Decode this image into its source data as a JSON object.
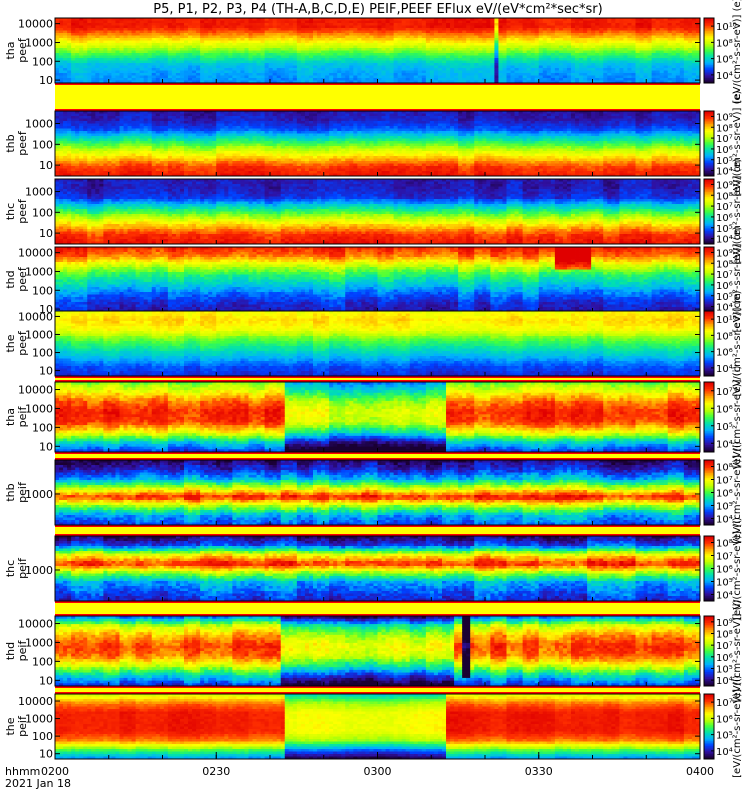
{
  "chart_data": {
    "type": "heatmap",
    "title": "P5, P1, P2, P3, P4 (TH-A,B,C,D,E) PEIF,PEEF EFlux eV/(eV*cm²*sec*sr)",
    "x_axis": {
      "label_line1": "hhmm",
      "label_line2": "2021 Jan 18",
      "range": [
        "0200",
        "0400"
      ],
      "ticks": [
        "0200",
        "0230",
        "0300",
        "0330",
        "0400"
      ]
    },
    "panels": [
      {
        "label_top": "tha",
        "label_bottom": "peef",
        "y_ticks": [
          "10",
          "100",
          "1000",
          "10000"
        ],
        "ylim": [
          7,
          20000
        ],
        "yscale": "log",
        "colorbar_ticks": [
          "10⁴",
          "10⁶",
          "10⁸",
          "10¹⁰"
        ],
        "colorbar_unit": "[eV/(cm²-s-sr-eV)] (e)",
        "profile": [
          9,
          9,
          7.5,
          6,
          4.5,
          3.2,
          2.8,
          2.6
        ],
        "noise": 0.6,
        "events": [
          {
            "t": 0.68,
            "width": 0.01,
            "delta": -2.2,
            "row_max": 1.0
          }
        ]
      },
      {
        "label_top": "thb",
        "label_bottom": "peef",
        "y_ticks": [
          "10",
          "100",
          "1000"
        ],
        "ylim": [
          3,
          4000
        ],
        "yscale": "log",
        "colorbar_ticks": [
          "10⁴",
          "10⁵",
          "10⁶",
          "10⁷",
          "10⁸",
          "10⁹"
        ],
        "colorbar_unit": "[eV/(cm²-s-sr-eV)] (e)",
        "profile": [
          1,
          1.2,
          2,
          3.8,
          5.5,
          7,
          8.5,
          9
        ],
        "noise": 0.7,
        "events": []
      },
      {
        "label_top": "thc",
        "label_bottom": "peef",
        "y_ticks": [
          "10",
          "100",
          "1000"
        ],
        "ylim": [
          3,
          4000
        ],
        "yscale": "log",
        "colorbar_ticks": [
          "10⁴",
          "10⁵",
          "10⁶",
          "10⁷",
          "10⁸",
          "10⁹"
        ],
        "colorbar_unit": "[eV/(cm²-s-sr-eV)] (e)",
        "profile": [
          1,
          1.1,
          1.5,
          3.5,
          5.3,
          7,
          8.5,
          9
        ],
        "noise": 0.8,
        "events": []
      },
      {
        "label_top": "thd",
        "label_bottom": "peef",
        "y_ticks": [
          "10",
          "100",
          "1000",
          "10000"
        ],
        "ylim": [
          7,
          20000
        ],
        "yscale": "log",
        "colorbar_ticks": [
          "10⁴",
          "10⁵",
          "10⁶",
          "10⁷",
          "10⁸",
          "10⁹"
        ],
        "colorbar_unit": "[eV/(cm²-s-sr-eV)] (e)",
        "profile": [
          9,
          8,
          6,
          4.5,
          3.5,
          2.4,
          1.6,
          1.2
        ],
        "noise": 0.9,
        "events": [
          {
            "t": 0.8,
            "width": 0.06,
            "delta": 3,
            "row_max": 0.35
          }
        ]
      },
      {
        "label_top": "the",
        "label_bottom": "peef",
        "y_ticks": [
          "10",
          "100",
          "1000",
          "10000"
        ],
        "ylim": [
          5,
          20000
        ],
        "yscale": "log",
        "colorbar_ticks": [
          "10⁴",
          "10⁶",
          "10⁸",
          "10¹⁰"
        ],
        "colorbar_unit": "[eV/(cm²-s-sr-eV)] (e)",
        "profile": [
          6.5,
          7,
          6.5,
          5,
          4,
          3,
          2,
          1.5
        ],
        "noise": 0.6,
        "events": []
      },
      {
        "label_top": "tha",
        "label_bottom": "peif",
        "y_ticks": [
          "10",
          "100",
          "1000",
          "10000"
        ],
        "ylim": [
          5,
          25000
        ],
        "yscale": "log",
        "colorbar_ticks": [
          "10⁴",
          "10⁵",
          "10⁶",
          "10⁷"
        ],
        "colorbar_unit": "[eV/(cm²-s-sr-eV)] (i)",
        "profile": [
          5,
          6.5,
          8,
          8.8,
          8.5,
          6.5,
          3.5,
          1.5
        ],
        "noise": 1.0,
        "events": [
          {
            "t": 0.48,
            "width": 0.25,
            "delta": -2.5,
            "row_max": 1.0
          }
        ]
      },
      {
        "label_top": "thb",
        "label_bottom": "peif",
        "y_ticks": [
          "1000"
        ],
        "ylim": [
          150,
          8000
        ],
        "yscale": "log",
        "colorbar_ticks": [
          "10⁴",
          "10⁵",
          "10⁶",
          "10⁷",
          "10⁸"
        ],
        "colorbar_unit": "[eV/(cm²-s-sr-eV)] (i)",
        "profile": [
          0.5,
          1.5,
          3,
          6,
          9,
          5.5,
          3,
          2
        ],
        "noise": 1.2,
        "events": []
      },
      {
        "label_top": "thc",
        "label_bottom": "peif",
        "y_ticks": [
          "1000"
        ],
        "ylim": [
          150,
          8000
        ],
        "yscale": "log",
        "colorbar_ticks": [
          "10⁴",
          "10⁵",
          "10⁶",
          "10⁷",
          "10⁸"
        ],
        "colorbar_unit": "[eV/(cm²-s-sr-eV)] (i)",
        "profile": [
          0.5,
          2,
          6.5,
          9,
          5.5,
          3,
          2.2,
          1.5
        ],
        "noise": 1.2,
        "events": []
      },
      {
        "label_top": "thd",
        "label_bottom": "peif",
        "y_ticks": [
          "10",
          "100",
          "1000",
          "10000"
        ],
        "ylim": [
          5,
          25000
        ],
        "yscale": "log",
        "colorbar_ticks": [
          "10⁴",
          "10⁵",
          "10⁶",
          "10⁷",
          "10⁸",
          "10⁹"
        ],
        "colorbar_unit": "[eV/(cm²-s-sr-eV)] (i)",
        "profile": [
          2,
          6,
          7.5,
          8.5,
          8,
          6,
          3.5,
          1.5
        ],
        "noise": 1.1,
        "events": [
          {
            "t": 0.48,
            "width": 0.27,
            "delta": -2,
            "row_max": 1.0
          },
          {
            "t": 0.633,
            "width": 0.012,
            "delta": -8,
            "row_max": 0.9
          }
        ]
      },
      {
        "label_top": "the",
        "label_bottom": "peif",
        "y_ticks": [
          "10",
          "100",
          "1000",
          "10000"
        ],
        "ylim": [
          5,
          25000
        ],
        "yscale": "log",
        "colorbar_ticks": [
          "10⁴",
          "10⁵",
          "10⁶",
          "10⁷"
        ],
        "colorbar_unit": "[eV/(cm²-s-sr-eV)] (i)",
        "profile": [
          6,
          8,
          9,
          9,
          9,
          8,
          5,
          2.5
        ],
        "noise": 0.5,
        "events": [
          {
            "t": 0.48,
            "width": 0.25,
            "delta": -2.5,
            "row_max": 1.0
          }
        ]
      }
    ],
    "colormap": [
      "#1a0033",
      "#3010a0",
      "#0040ff",
      "#00b0ff",
      "#00e0b0",
      "#40ff40",
      "#c0ff00",
      "#ffff00",
      "#ffa000",
      "#ff3000",
      "#e00000"
    ],
    "frame_color": "#000000",
    "separator_color": "#ff0000",
    "gap_color": "#ffff00"
  }
}
